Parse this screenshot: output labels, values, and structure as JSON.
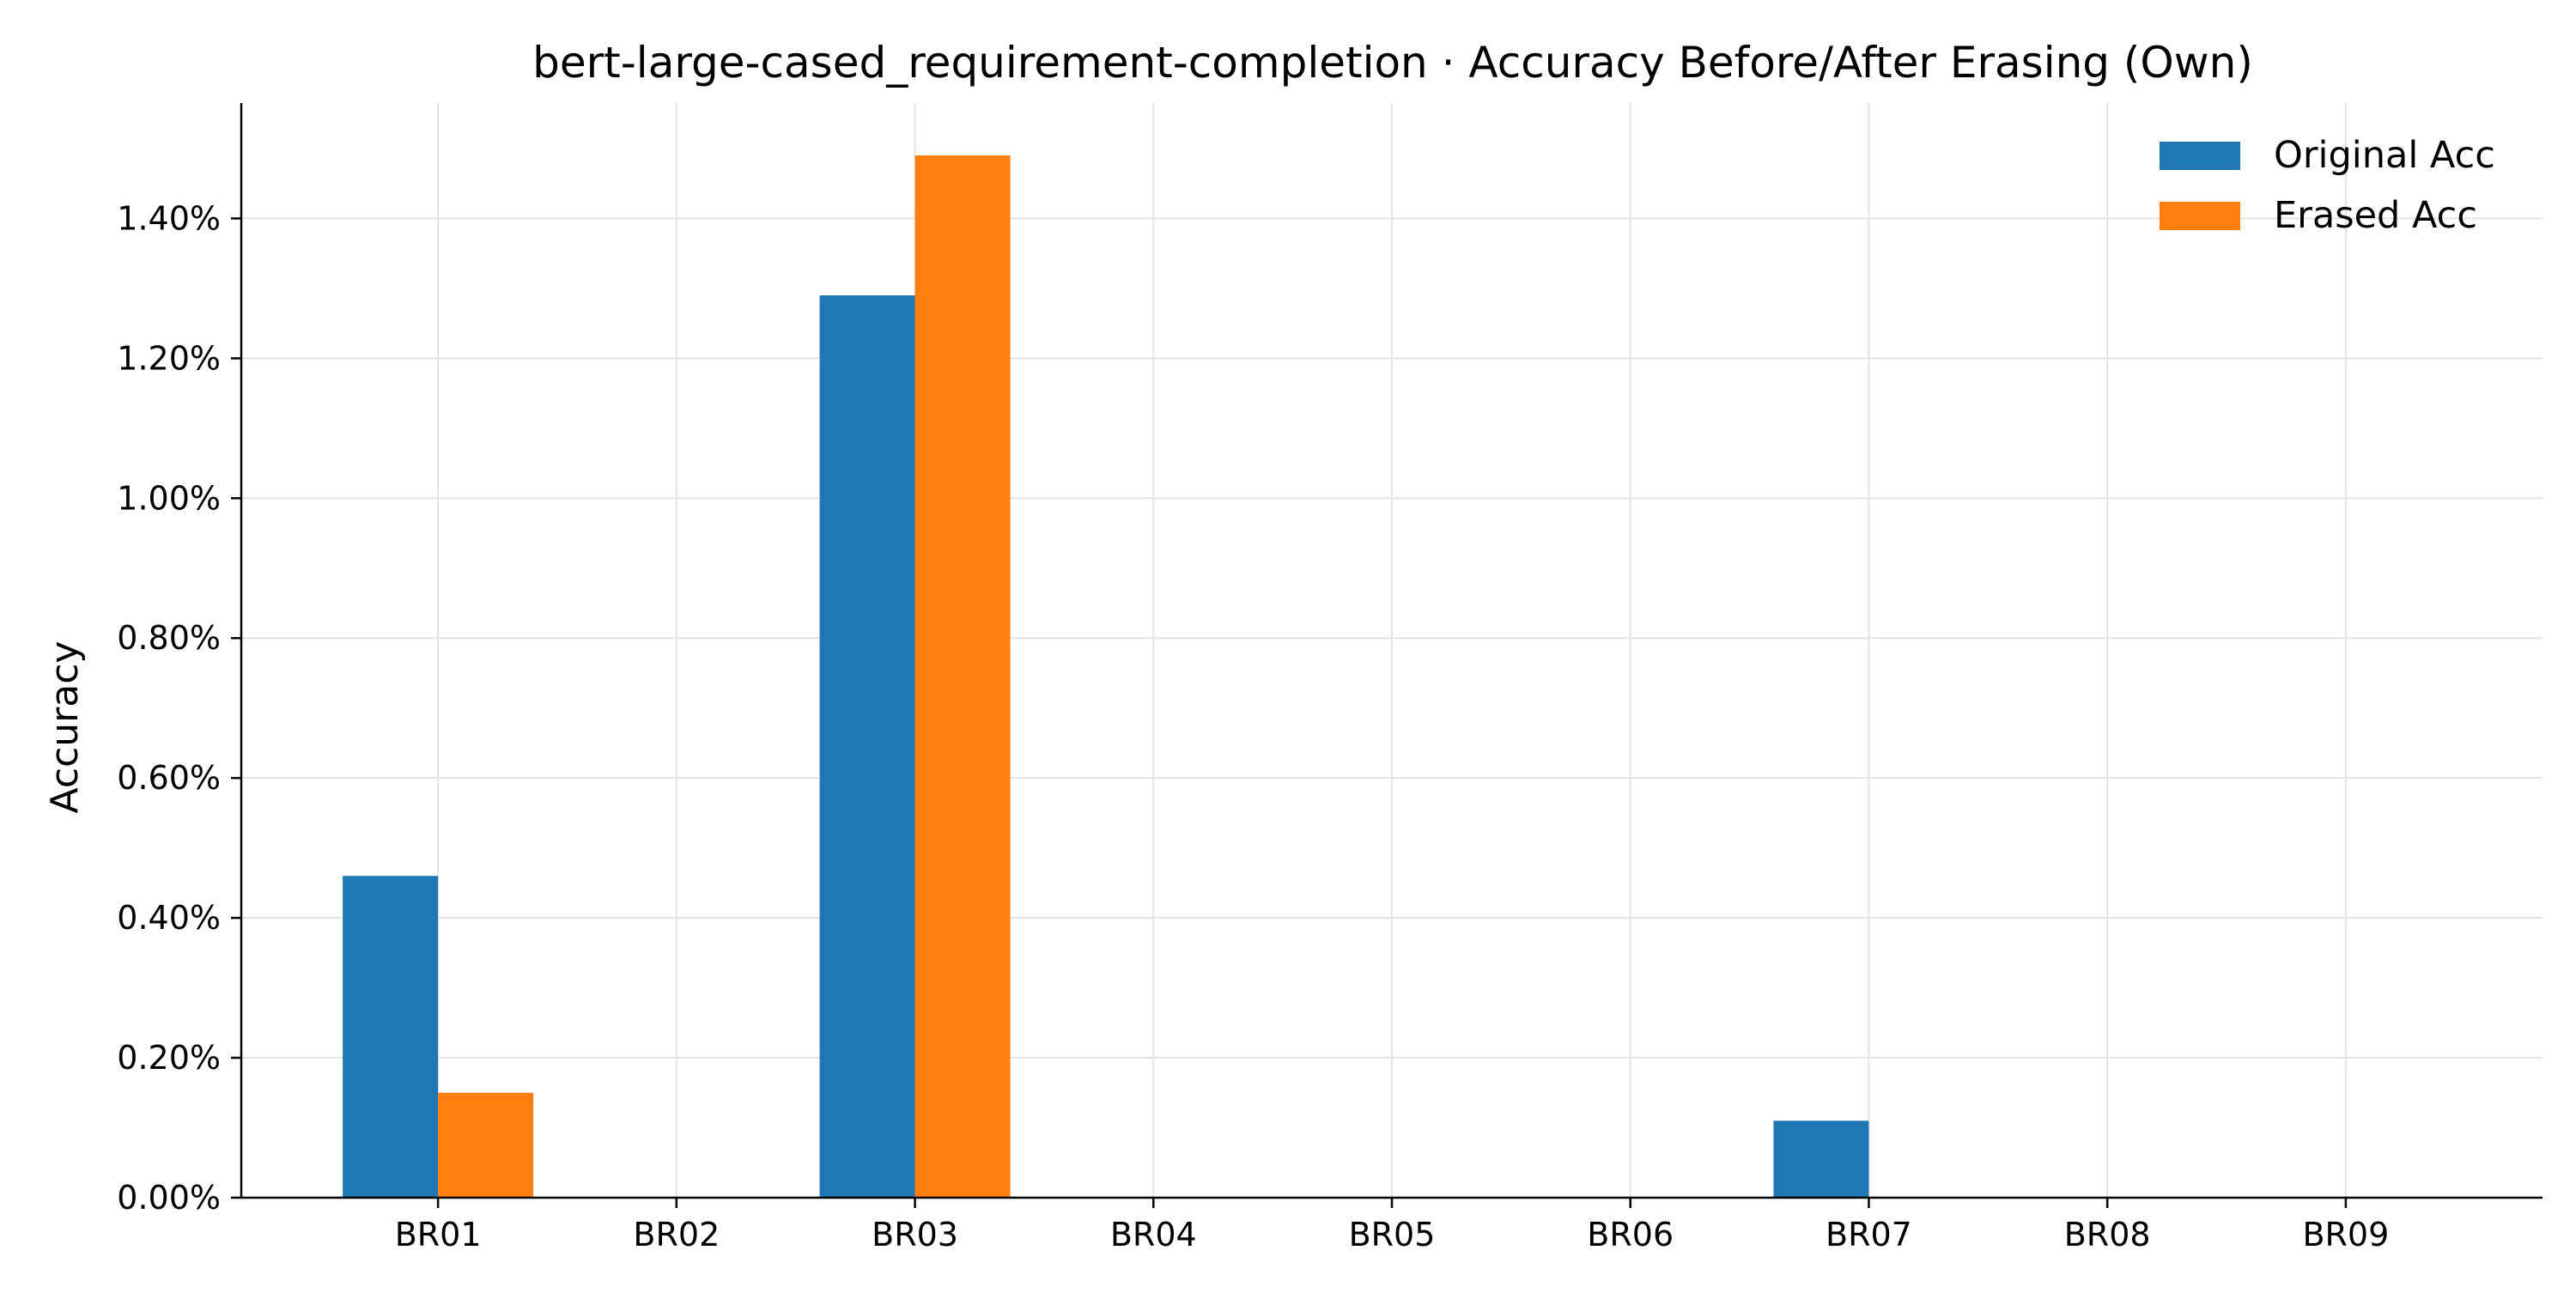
{
  "chart_data": {
    "type": "bar",
    "title": "bert-large-cased_requirement-completion · Accuracy Before/After Erasing (Own)",
    "xlabel": "",
    "ylabel": "Accuracy",
    "categories": [
      "BR01",
      "BR02",
      "BR03",
      "BR04",
      "BR05",
      "BR06",
      "BR07",
      "BR08",
      "BR09"
    ],
    "series": [
      {
        "name": "Original Acc",
        "color": "#1f77b4",
        "values": [
          0.46,
          0,
          1.29,
          0,
          0,
          0,
          0.11,
          0,
          0
        ]
      },
      {
        "name": "Erased Acc",
        "color": "#ff7f0e",
        "values": [
          0.15,
          0,
          1.49,
          0,
          0,
          0,
          0,
          0,
          0
        ]
      }
    ],
    "ylim": [
      0,
      1.565
    ],
    "yticks": [
      0,
      0.2,
      0.4,
      0.6,
      0.8,
      1.0,
      1.2,
      1.4
    ],
    "ytick_labels": [
      "0.00%",
      "0.20%",
      "0.40%",
      "0.60%",
      "0.80%",
      "1.00%",
      "1.20%",
      "1.40%"
    ],
    "grid": true,
    "legend_position": "top-right"
  }
}
